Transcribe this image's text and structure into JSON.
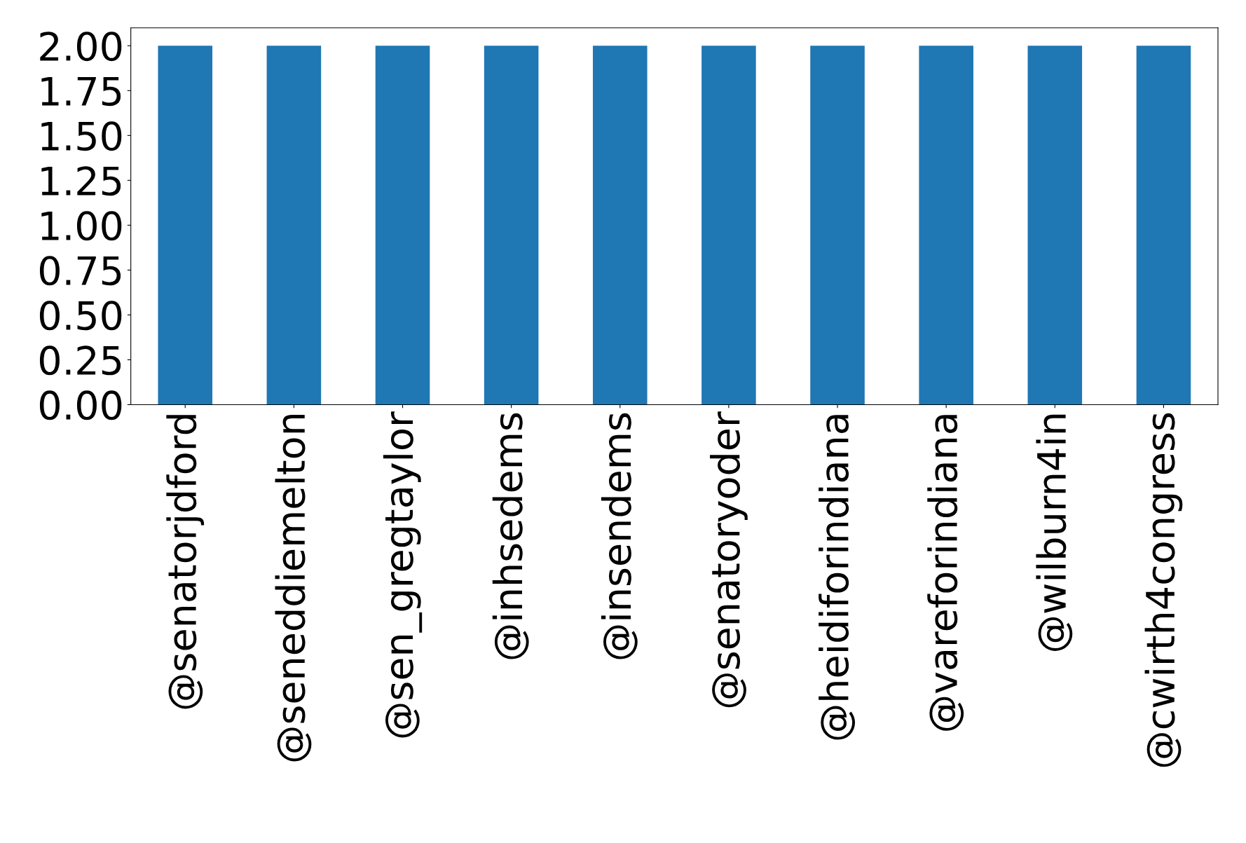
{
  "chart_data": {
    "type": "bar",
    "categories": [
      "@senatorjdford",
      "@seneddiemelton",
      "@sen_gregtaylor",
      "@inhsedems",
      "@insendems",
      "@senatoryoder",
      "@heidiforindiana",
      "@vareforindiana",
      "@wilburn4in",
      "@cwirth4congress"
    ],
    "values": [
      2,
      2,
      2,
      2,
      2,
      2,
      2,
      2,
      2,
      2
    ],
    "color": "#1f77b4",
    "ylim": [
      0,
      2.1
    ],
    "yticks": [
      {
        "value": 0,
        "label": "0.00"
      },
      {
        "value": 0.25,
        "label": "0.25"
      },
      {
        "value": 0.5,
        "label": "0.50"
      },
      {
        "value": 0.75,
        "label": "0.75"
      },
      {
        "value": 1,
        "label": "1.00"
      },
      {
        "value": 1.25,
        "label": "1.25"
      },
      {
        "value": 1.5,
        "label": "1.50"
      },
      {
        "value": 1.75,
        "label": "1.75"
      },
      {
        "value": 2,
        "label": "2.00"
      }
    ],
    "grid": false,
    "legend": false
  }
}
